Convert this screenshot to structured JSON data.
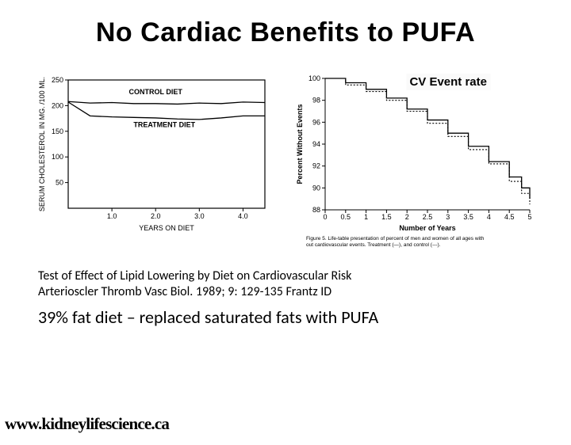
{
  "title": "No Cardiac Benefits to PUFA",
  "website": "www.kidneylifescience.ca",
  "citation_line1": "Test of Effect of Lipid Lowering by Diet on Cardiovascular Risk",
  "citation_line2": "Arterioscler Thromb Vasc Biol. 1989; 9: 129-135 Frantz ID",
  "summary": "39% fat diet – replaced saturated fats with PUFA",
  "chart_left": {
    "type": "line",
    "title_in_chart_1": "CONTROL DIET",
    "title_in_chart_2": "TREATMENT DIET",
    "xlabel": "YEARS ON DIET",
    "ylabel": "SERUM CHOLESTEROL IN MG. /100 ML.",
    "xlim": [
      0,
      4.5
    ],
    "ylim": [
      0,
      250
    ],
    "xticks": [
      1.0,
      2.0,
      3.0,
      4.0
    ],
    "yticks": [
      50,
      100,
      150,
      200,
      250
    ],
    "series": {
      "control": {
        "x": [
          0,
          0.5,
          1.0,
          1.5,
          2.0,
          2.5,
          3.0,
          3.5,
          4.0,
          4.5
        ],
        "y": [
          208,
          205,
          206,
          204,
          204,
          203,
          205,
          204,
          207,
          206
        ],
        "color": "#000000"
      },
      "treatment": {
        "x": [
          0,
          0.5,
          1.0,
          1.5,
          2.0,
          2.5,
          3.0,
          3.5,
          4.0,
          4.5
        ],
        "y": [
          207,
          180,
          178,
          177,
          176,
          174,
          173,
          176,
          180,
          180
        ],
        "color": "#000000"
      }
    },
    "background_color": "#ffffff",
    "axis_color": "#000000"
  },
  "chart_right": {
    "type": "survival-step",
    "overlay_label": "CV Event rate",
    "xlabel": "Number of Years",
    "ylabel": "Percent Without Events",
    "caption": "Figure 5. Life-table presentation of percent of men and women of all ages without cardiovascular events. Treatment (—), and control (---).",
    "xlim": [
      0,
      5.0
    ],
    "ylim": [
      88,
      100
    ],
    "xticks": [
      0,
      0.5,
      1.0,
      1.5,
      2.0,
      2.5,
      3.0,
      3.5,
      4.0,
      4.5,
      5.0
    ],
    "yticks": [
      88,
      90,
      92,
      94,
      96,
      98,
      100
    ],
    "series": {
      "treatment": {
        "x": [
          0,
          0.5,
          1.0,
          1.5,
          2.0,
          2.5,
          3.0,
          3.5,
          4.0,
          4.5,
          4.8,
          5.0
        ],
        "y": [
          100,
          99.6,
          99.0,
          98.2,
          97.2,
          96.2,
          95.0,
          93.8,
          92.4,
          91.0,
          90.0,
          89.0
        ],
        "style": "solid",
        "color": "#000000"
      },
      "control": {
        "x": [
          0,
          0.5,
          1.0,
          1.5,
          2.0,
          2.5,
          3.0,
          3.5,
          4.0,
          4.5,
          4.8,
          5.0
        ],
        "y": [
          100,
          99.4,
          98.8,
          98.0,
          97.0,
          95.9,
          94.7,
          93.5,
          92.2,
          90.6,
          89.5,
          88.5
        ],
        "style": "dotted",
        "color": "#000000"
      }
    },
    "background_color": "#ffffff",
    "axis_color": "#000000"
  }
}
